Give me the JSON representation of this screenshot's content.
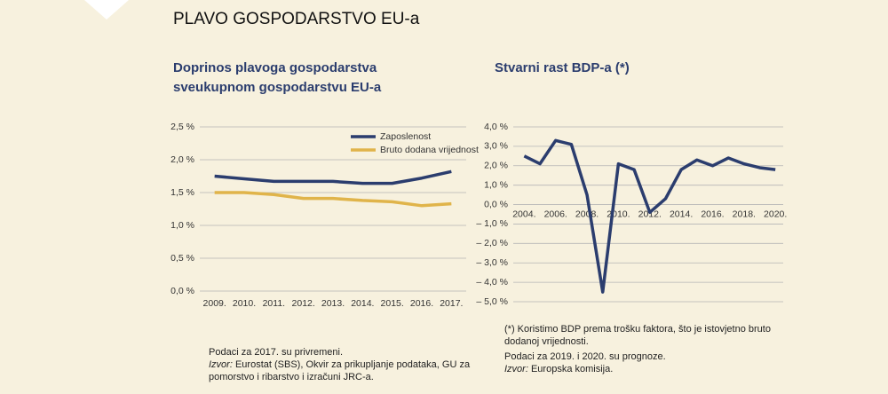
{
  "header": {
    "title": "PLAVO GOSPODARSTVO EU-a"
  },
  "chart_data": [
    {
      "type": "line",
      "title_lines": [
        "Doprinos plavoga gospodarstva",
        "sveukupnom gospodarstvu EU-a"
      ],
      "categories": [
        "2009.",
        "2010.",
        "2011.",
        "2012.",
        "2013.",
        "2014.",
        "2015.",
        "2016.",
        "2017."
      ],
      "series": [
        {
          "name": "Zaposlenost",
          "color": "#2b3d6e",
          "values": [
            1.75,
            1.71,
            1.67,
            1.67,
            1.67,
            1.64,
            1.64,
            1.72,
            1.82
          ]
        },
        {
          "name": "Bruto dodana vrijednost",
          "color": "#e0b44a",
          "values": [
            1.5,
            1.5,
            1.47,
            1.41,
            1.41,
            1.38,
            1.36,
            1.3,
            1.33
          ]
        }
      ],
      "ylim": [
        0,
        2.5
      ],
      "yticks": [
        {
          "value": 0,
          "label": "0,0 %"
        },
        {
          "value": 0.5,
          "label": "0,5 %"
        },
        {
          "value": 1,
          "label": "1,0 %"
        },
        {
          "value": 1.5,
          "label": "1,5 %"
        },
        {
          "value": 2,
          "label": "2,0 %"
        },
        {
          "value": 2.5,
          "label": "2,5 %"
        }
      ],
      "grid": true,
      "legend": "upper right",
      "notes": [
        "Podaci za 2017. su privremeni."
      ],
      "source_label": "Izvor:",
      "source_text": "Eurostat (SBS), Okvir za prikupljanje podataka, GU za pomorstvo i ribarstvo i izračuni JRC-a."
    },
    {
      "type": "line",
      "title_lines": [
        "Stvarni rast BDP-a (*)"
      ],
      "x": [
        2004,
        2005,
        2006,
        2007,
        2008,
        2009,
        2010,
        2011,
        2012,
        2013,
        2014,
        2015,
        2016,
        2017,
        2018,
        2019,
        2020
      ],
      "series": [
        {
          "name": "Stvarni rast BDP-a",
          "color": "#2b3d6e",
          "values": [
            2.5,
            2.1,
            3.3,
            3.1,
            0.5,
            -4.5,
            2.1,
            1.8,
            -0.4,
            0.3,
            1.8,
            2.3,
            2.0,
            2.4,
            2.1,
            1.9,
            1.8
          ]
        }
      ],
      "xlim": [
        2003.3,
        2020.5
      ],
      "xticks": [
        {
          "value": 2004,
          "label": "2004."
        },
        {
          "value": 2006,
          "label": "2006."
        },
        {
          "value": 2008,
          "label": "2008."
        },
        {
          "value": 2010,
          "label": "2010."
        },
        {
          "value": 2012,
          "label": "2012."
        },
        {
          "value": 2014,
          "label": "2014."
        },
        {
          "value": 2016,
          "label": "2016."
        },
        {
          "value": 2018,
          "label": "2018."
        },
        {
          "value": 2020,
          "label": "2020."
        }
      ],
      "ylim": [
        -5,
        4
      ],
      "yticks": [
        {
          "value": 4,
          "label": "4,0 %"
        },
        {
          "value": 3,
          "label": "3,0 %"
        },
        {
          "value": 2,
          "label": "2,0 %"
        },
        {
          "value": 1,
          "label": "1,0 %"
        },
        {
          "value": 0,
          "label": "0,0 %"
        },
        {
          "value": -1,
          "label": "– 1,0 %"
        },
        {
          "value": -2,
          "label": "– 2,0 %"
        },
        {
          "value": -3,
          "label": "– 3,0 %"
        },
        {
          "value": -4,
          "label": "– 4,0 %"
        },
        {
          "value": -5,
          "label": "– 5,0 %"
        }
      ],
      "grid": true,
      "notes": [
        "(*) Koristimo BDP prema trošku faktora, što je istovjetno bruto dodanoj vrijednosti.",
        "Podaci za 2019. i 2020. su prognoze."
      ],
      "source_label": "Izvor:",
      "source_text": "Europska komisija."
    }
  ]
}
